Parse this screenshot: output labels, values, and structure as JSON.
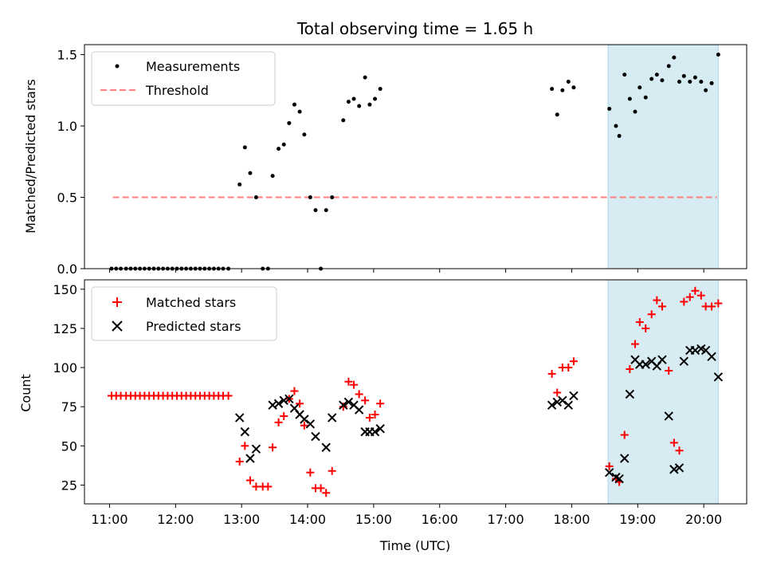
{
  "chart_data": {
    "type": "scatter",
    "title": "Total observing time = 1.65 h",
    "xlabel": "Time (UTC)",
    "x_ticks": [
      "11:00",
      "12:00",
      "13:00",
      "14:00",
      "15:00",
      "16:00",
      "17:00",
      "18:00",
      "19:00",
      "20:00"
    ],
    "x_range_hours": [
      10.62,
      20.65
    ],
    "highlight_span_hours": [
      18.55,
      20.22
    ],
    "highlight_color": "#add8e6",
    "top": {
      "ylabel": "Matched/Predicted stars",
      "ylim": [
        0,
        1.57
      ],
      "y_ticks": [
        0.0,
        0.5,
        1.0,
        1.5
      ],
      "y_tick_labels": [
        "0.0",
        "0.5",
        "1.0",
        "1.5"
      ],
      "legend_position": "upper-left",
      "threshold": {
        "name": "Threshold",
        "value": 0.5,
        "x_start": 11.05,
        "x_end": 20.2,
        "color": "#ff7f7f"
      },
      "measurements": {
        "name": "Measurements",
        "color": "#000000",
        "points": [
          [
            11.03,
            0
          ],
          [
            11.1,
            0
          ],
          [
            11.17,
            0
          ],
          [
            11.25,
            0
          ],
          [
            11.32,
            0
          ],
          [
            11.39,
            0
          ],
          [
            11.46,
            0
          ],
          [
            11.53,
            0
          ],
          [
            11.6,
            0
          ],
          [
            11.67,
            0
          ],
          [
            11.74,
            0
          ],
          [
            11.81,
            0
          ],
          [
            11.88,
            0
          ],
          [
            11.95,
            0
          ],
          [
            12.02,
            0
          ],
          [
            12.09,
            0
          ],
          [
            12.16,
            0
          ],
          [
            12.23,
            0
          ],
          [
            12.3,
            0
          ],
          [
            12.37,
            0
          ],
          [
            12.44,
            0
          ],
          [
            12.51,
            0
          ],
          [
            12.58,
            0
          ],
          [
            12.65,
            0
          ],
          [
            12.72,
            0
          ],
          [
            12.8,
            0
          ],
          [
            12.97,
            0.59
          ],
          [
            13.05,
            0.85
          ],
          [
            13.13,
            0.67
          ],
          [
            13.22,
            0.5
          ],
          [
            13.32,
            0
          ],
          [
            13.4,
            0
          ],
          [
            13.47,
            0.65
          ],
          [
            13.56,
            0.84
          ],
          [
            13.64,
            0.87
          ],
          [
            13.72,
            1.02
          ],
          [
            13.8,
            1.15
          ],
          [
            13.88,
            1.1
          ],
          [
            13.95,
            0.94
          ],
          [
            14.04,
            0.5
          ],
          [
            14.12,
            0.41
          ],
          [
            14.2,
            0
          ],
          [
            14.28,
            0.41
          ],
          [
            14.37,
            0.5
          ],
          [
            14.54,
            1.04
          ],
          [
            14.62,
            1.17
          ],
          [
            14.7,
            1.19
          ],
          [
            14.78,
            1.14
          ],
          [
            14.87,
            1.34
          ],
          [
            14.94,
            1.15
          ],
          [
            15.02,
            1.19
          ],
          [
            15.1,
            1.26
          ],
          [
            17.7,
            1.26
          ],
          [
            17.78,
            1.08
          ],
          [
            17.86,
            1.25
          ],
          [
            17.95,
            1.31
          ],
          [
            18.03,
            1.27
          ],
          [
            18.57,
            1.12
          ],
          [
            18.67,
            1.0
          ],
          [
            18.72,
            0.93
          ],
          [
            18.8,
            1.36
          ],
          [
            18.88,
            1.19
          ],
          [
            18.96,
            1.1
          ],
          [
            19.03,
            1.27
          ],
          [
            19.12,
            1.2
          ],
          [
            19.21,
            1.33
          ],
          [
            19.29,
            1.36
          ],
          [
            19.37,
            1.32
          ],
          [
            19.47,
            1.42
          ],
          [
            19.55,
            1.48
          ],
          [
            19.63,
            1.31
          ],
          [
            19.7,
            1.35
          ],
          [
            19.79,
            1.31
          ],
          [
            19.87,
            1.34
          ],
          [
            19.96,
            1.31
          ],
          [
            20.03,
            1.25
          ],
          [
            20.12,
            1.3
          ],
          [
            20.22,
            1.5
          ]
        ]
      }
    },
    "bottom": {
      "ylabel": "Count",
      "ylim": [
        13,
        156
      ],
      "y_ticks": [
        25,
        50,
        75,
        100,
        125,
        150
      ],
      "y_tick_labels": [
        "25",
        "50",
        "75",
        "100",
        "125",
        "150"
      ],
      "legend_position": "upper-left",
      "series": [
        {
          "name": "Matched stars",
          "marker": "plus",
          "color": "#ff0000",
          "points": [
            [
              11.03,
              82
            ],
            [
              11.1,
              82
            ],
            [
              11.17,
              82
            ],
            [
              11.25,
              82
            ],
            [
              11.32,
              82
            ],
            [
              11.39,
              82
            ],
            [
              11.46,
              82
            ],
            [
              11.53,
              82
            ],
            [
              11.6,
              82
            ],
            [
              11.67,
              82
            ],
            [
              11.74,
              82
            ],
            [
              11.81,
              82
            ],
            [
              11.88,
              82
            ],
            [
              11.95,
              82
            ],
            [
              12.02,
              82
            ],
            [
              12.09,
              82
            ],
            [
              12.16,
              82
            ],
            [
              12.23,
              82
            ],
            [
              12.3,
              82
            ],
            [
              12.37,
              82
            ],
            [
              12.44,
              82
            ],
            [
              12.51,
              82
            ],
            [
              12.58,
              82
            ],
            [
              12.65,
              82
            ],
            [
              12.72,
              82
            ],
            [
              12.8,
              82
            ],
            [
              12.97,
              40
            ],
            [
              13.05,
              50
            ],
            [
              13.13,
              28
            ],
            [
              13.22,
              24
            ],
            [
              13.32,
              24
            ],
            [
              13.4,
              24
            ],
            [
              13.47,
              49
            ],
            [
              13.56,
              65
            ],
            [
              13.64,
              69
            ],
            [
              13.72,
              80
            ],
            [
              13.8,
              85
            ],
            [
              13.88,
              77
            ],
            [
              13.95,
              63
            ],
            [
              14.04,
              33
            ],
            [
              14.12,
              23
            ],
            [
              14.2,
              23
            ],
            [
              14.28,
              20
            ],
            [
              14.37,
              34
            ],
            [
              14.54,
              75
            ],
            [
              14.62,
              91
            ],
            [
              14.7,
              89
            ],
            [
              14.78,
              83
            ],
            [
              14.87,
              79
            ],
            [
              14.94,
              68
            ],
            [
              15.02,
              70
            ],
            [
              15.1,
              77
            ],
            [
              17.7,
              96
            ],
            [
              17.78,
              84
            ],
            [
              17.86,
              100
            ],
            [
              17.95,
              100
            ],
            [
              18.03,
              104
            ],
            [
              18.57,
              37
            ],
            [
              18.67,
              29
            ],
            [
              18.72,
              27
            ],
            [
              18.8,
              57
            ],
            [
              18.88,
              99
            ],
            [
              18.96,
              115
            ],
            [
              19.03,
              129
            ],
            [
              19.12,
              125
            ],
            [
              19.21,
              134
            ],
            [
              19.29,
              143
            ],
            [
              19.37,
              139
            ],
            [
              19.47,
              98
            ],
            [
              19.55,
              52
            ],
            [
              19.63,
              47
            ],
            [
              19.7,
              142
            ],
            [
              19.79,
              145
            ],
            [
              19.87,
              149
            ],
            [
              19.96,
              146
            ],
            [
              20.03,
              139
            ],
            [
              20.12,
              139
            ],
            [
              20.22,
              141
            ]
          ]
        },
        {
          "name": "Predicted stars",
          "marker": "x",
          "color": "#000000",
          "points": [
            [
              12.97,
              68
            ],
            [
              13.05,
              59
            ],
            [
              13.13,
              42
            ],
            [
              13.22,
              48
            ],
            [
              13.47,
              76
            ],
            [
              13.56,
              77
            ],
            [
              13.64,
              79
            ],
            [
              13.72,
              80
            ],
            [
              13.8,
              74
            ],
            [
              13.88,
              70
            ],
            [
              13.95,
              67
            ],
            [
              14.04,
              64
            ],
            [
              14.12,
              56
            ],
            [
              14.28,
              49
            ],
            [
              14.37,
              68
            ],
            [
              14.54,
              76
            ],
            [
              14.62,
              78
            ],
            [
              14.7,
              76
            ],
            [
              14.78,
              73
            ],
            [
              14.87,
              59
            ],
            [
              14.94,
              59
            ],
            [
              15.02,
              59
            ],
            [
              15.1,
              61
            ],
            [
              17.7,
              76
            ],
            [
              17.78,
              78
            ],
            [
              17.86,
              79
            ],
            [
              17.95,
              76
            ],
            [
              18.03,
              82
            ],
            [
              18.57,
              33
            ],
            [
              18.67,
              30
            ],
            [
              18.72,
              29
            ],
            [
              18.8,
              42
            ],
            [
              18.88,
              83
            ],
            [
              18.96,
              105
            ],
            [
              19.03,
              102
            ],
            [
              19.12,
              102
            ],
            [
              19.21,
              104
            ],
            [
              19.29,
              101
            ],
            [
              19.37,
              105
            ],
            [
              19.47,
              69
            ],
            [
              19.55,
              35
            ],
            [
              19.63,
              36
            ],
            [
              19.7,
              104
            ],
            [
              19.79,
              111
            ],
            [
              19.87,
              111
            ],
            [
              19.96,
              112
            ],
            [
              20.03,
              111
            ],
            [
              20.12,
              107
            ],
            [
              20.22,
              94
            ]
          ]
        }
      ]
    }
  }
}
